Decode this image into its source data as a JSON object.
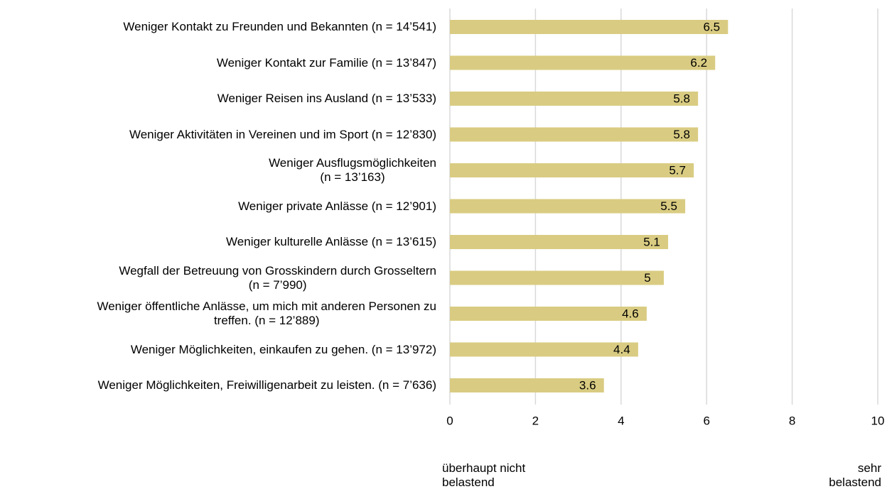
{
  "chart_data": {
    "type": "hbar",
    "categories": [
      "Weniger Kontakt zu Freunden und Bekannten (n = 14’541)",
      "Weniger Kontakt zur Familie (n = 13’847)",
      "Weniger Reisen ins Ausland (n = 13’533)",
      "Weniger Aktivitäten in Vereinen und im Sport (n = 12’830)",
      "Weniger Ausflugsmöglichkeiten\n(n = 13’163)",
      "Weniger private Anlässe (n = 12’901)",
      "Weniger kulturelle Anlässe (n = 13’615)",
      "Wegfall der Betreuung von Grosskindern durch Grosseltern\n(n = 7’990)",
      "Weniger öffentliche Anlässe, um mich mit anderen Personen zu\ntreffen. (n = 12’889)",
      "Weniger Möglichkeiten, einkaufen zu gehen. (n = 13’972)",
      "Weniger Möglichkeiten, Freiwilligenarbeit zu leisten. (n = 7’636)"
    ],
    "values": [
      6.5,
      6.2,
      5.8,
      5.8,
      5.7,
      5.5,
      5.1,
      5,
      4.6,
      4.4,
      3.6
    ],
    "color": "#d9cc82",
    "xlim": [
      0,
      10
    ],
    "xticks": [
      0,
      2,
      4,
      6,
      8,
      10
    ],
    "grid": true,
    "annotations": [
      "überhaupt nicht\nbelastend",
      "sehr\nbelastend"
    ]
  }
}
